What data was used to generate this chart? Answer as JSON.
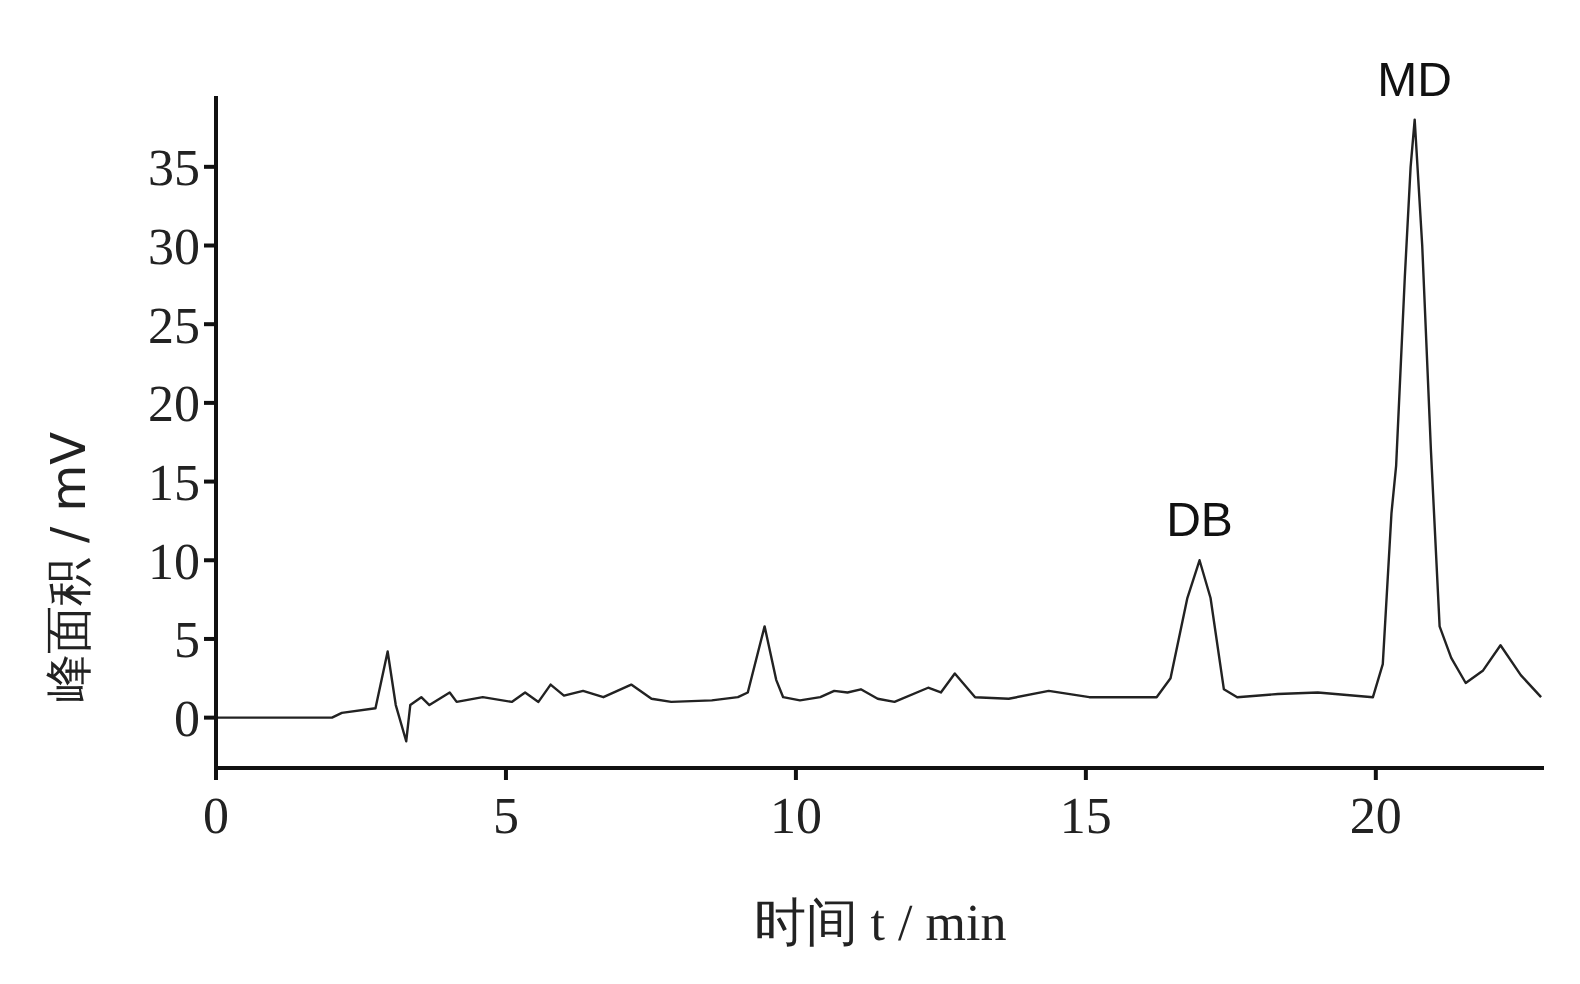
{
  "chart_data": {
    "type": "line",
    "xlabel": "时间 t / min",
    "ylabel": "峰面积 / mV",
    "x": [
      0,
      2.0,
      2.17,
      2.75,
      2.96,
      3.1,
      3.28,
      3.35,
      3.54,
      3.68,
      4.03,
      4.15,
      4.6,
      5.1,
      5.33,
      5.56,
      5.77,
      6.0,
      6.33,
      6.68,
      7.16,
      7.51,
      7.85,
      8.55,
      9.0,
      9.17,
      9.46,
      9.66,
      9.78,
      10.07,
      10.42,
      10.66,
      10.89,
      11.12,
      11.41,
      11.7,
      12.28,
      12.5,
      12.74,
      13.09,
      13.67,
      14.36,
      15.06,
      16.22,
      16.46,
      16.75,
      16.96,
      17.15,
      17.38,
      17.61,
      18.31,
      19.0,
      19.95,
      20.12,
      20.27,
      20.35,
      20.5,
      20.6,
      20.67,
      20.8,
      20.95,
      21.1,
      21.3,
      21.55,
      21.85,
      22.15,
      22.5,
      22.85
    ],
    "series": [
      {
        "color": "#222222",
        "values": [
          0,
          0,
          0.3,
          0.6,
          4.2,
          0.8,
          -1.5,
          0.8,
          1.3,
          0.8,
          1.6,
          1.0,
          1.3,
          1.0,
          1.6,
          1.0,
          2.1,
          1.4,
          1.7,
          1.3,
          2.1,
          1.2,
          1.0,
          1.1,
          1.3,
          1.6,
          5.8,
          2.4,
          1.3,
          1.1,
          1.3,
          1.7,
          1.6,
          1.8,
          1.2,
          1.0,
          1.9,
          1.6,
          2.8,
          1.3,
          1.2,
          1.7,
          1.3,
          1.3,
          2.5,
          7.6,
          10,
          7.6,
          1.8,
          1.3,
          1.5,
          1.6,
          1.3,
          3.4,
          13,
          16,
          28,
          35,
          38,
          30,
          17,
          5.8,
          3.8,
          2.2,
          3.0,
          4.6,
          2.7,
          1.3
        ]
      }
    ],
    "annotations": [
      {
        "text": "DB",
        "x": 16.96,
        "y": 10
      },
      {
        "text": "MD",
        "x": 20.67,
        "y": 38
      }
    ],
    "xlim": [
      0,
      22.9
    ],
    "xticks": [
      0,
      5,
      10,
      15,
      20
    ],
    "ylim": [
      -3.2,
      39.5
    ],
    "yticks": [
      0,
      5,
      10,
      15,
      20,
      25,
      30,
      35
    ],
    "grid": false,
    "legend": false,
    "marker": "none",
    "line_style": "solid"
  }
}
